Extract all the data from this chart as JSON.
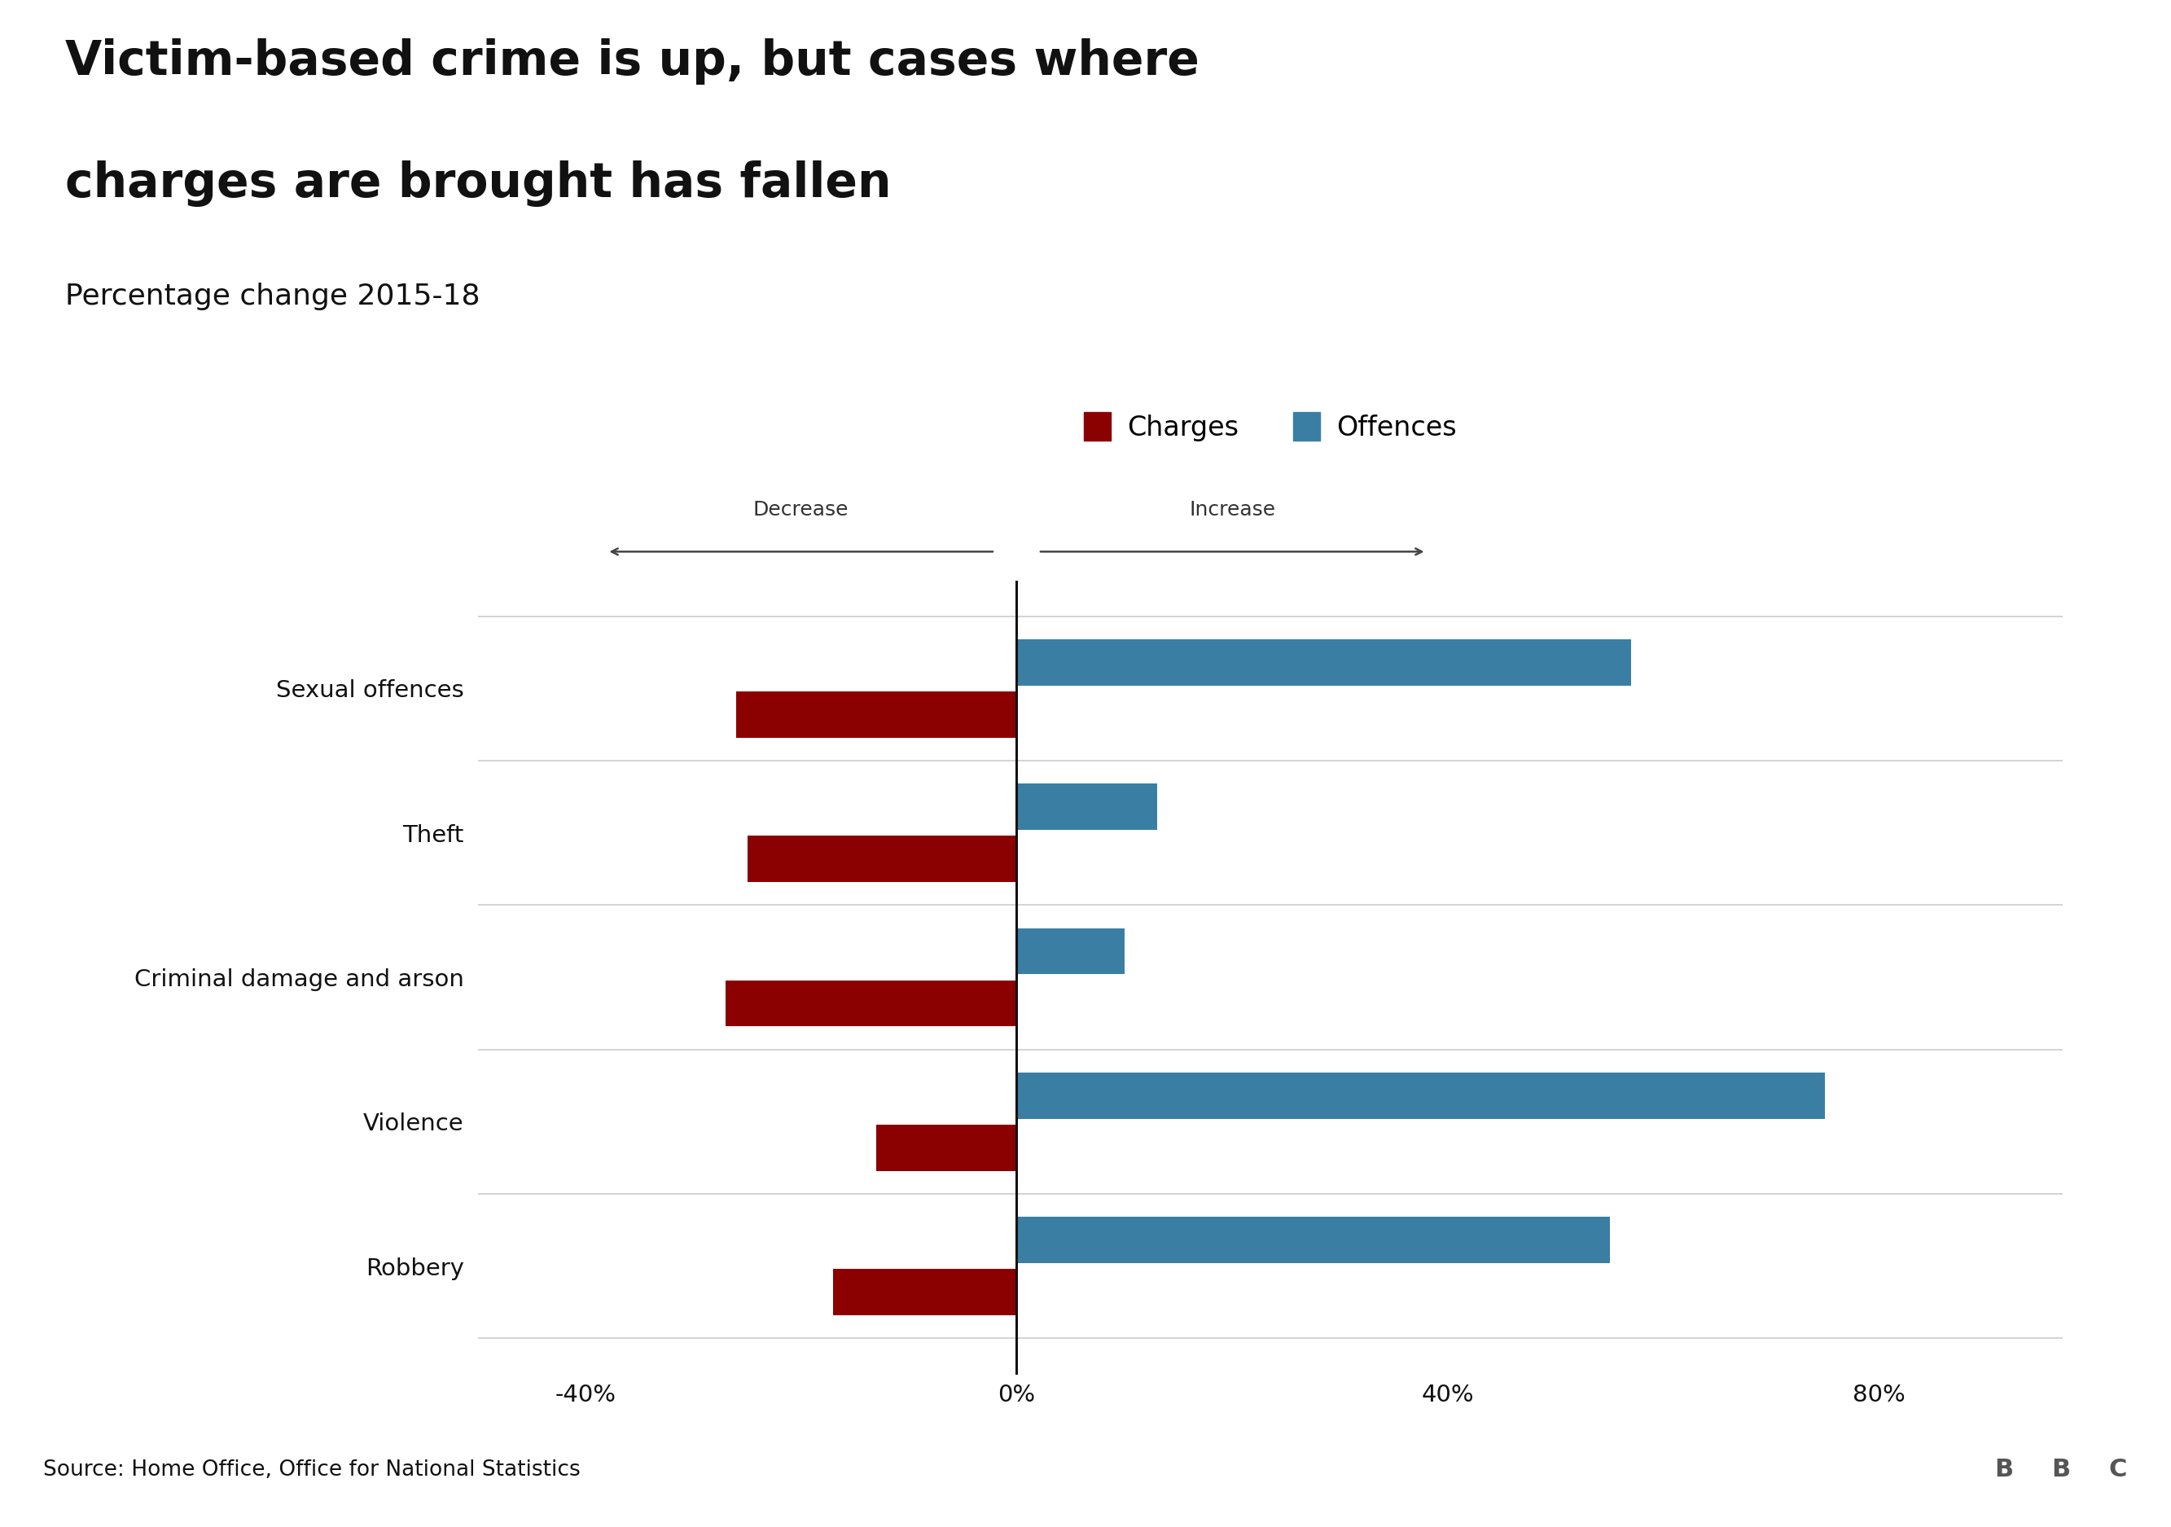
{
  "title_line1": "Victim-based crime is up, but cases where",
  "title_line2": "charges are brought has fallen",
  "subtitle": "Percentage change 2015-18",
  "categories": [
    "Sexual offences",
    "Theft",
    "Criminal damage and arson",
    "Violence",
    "Robbery"
  ],
  "charges": [
    -26,
    -25,
    -27,
    -13,
    -17
  ],
  "offences": [
    57,
    13,
    10,
    75,
    55
  ],
  "charges_color": "#8B0000",
  "offences_color": "#3A7FA3",
  "bg_color": "#ffffff",
  "chart_bg": "#ffffff",
  "footer_bg": "#bbbbbb",
  "source_text": "Source: Home Office, Office for National Statistics",
  "bbc_text": "BBC",
  "xlim": [
    -50,
    97
  ],
  "xticks": [
    -40,
    0,
    40,
    80
  ],
  "bar_height": 0.32,
  "bar_gap": 0.04,
  "legend_labels": [
    "Charges",
    "Offences"
  ],
  "decrease_label": "Decrease",
  "increase_label": "Increase"
}
